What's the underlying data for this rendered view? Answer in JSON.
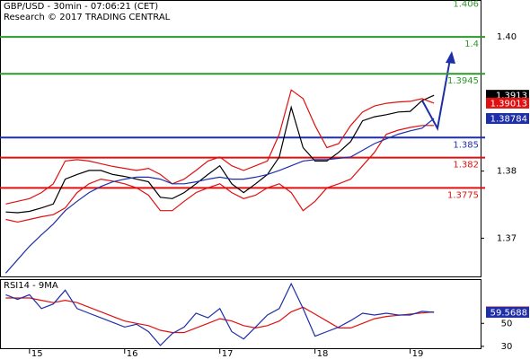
{
  "chart_data": [
    {
      "type": "line",
      "title": "GBP/USD - 30min - 07:06:21 (CET)",
      "subtitle": "Research © 2017 TRADING CENTRAL",
      "x": [
        14.75,
        14.875,
        15,
        15.125,
        15.25,
        15.375,
        15.5,
        15.625,
        15.75,
        15.875,
        16,
        16.125,
        16.25,
        16.375,
        16.5,
        16.625,
        16.75,
        16.875,
        17,
        17.125,
        17.25,
        17.375,
        17.5,
        17.625,
        17.75,
        17.875,
        18,
        18.125,
        18.25,
        18.375,
        18.5,
        18.625,
        18.75,
        18.875,
        19,
        19.125,
        19.25
      ],
      "xlim": [
        14.69,
        19.74
      ],
      "ylim": [
        1.3643,
        1.4055
      ],
      "yticks": [
        1.37,
        1.38,
        {
          "value": 1.4,
          "label": "1.40"
        }
      ],
      "levels": [
        {
          "value": 1.406,
          "color": "#2a9a2a"
        },
        {
          "value": 1.4,
          "color": "#2a9a2a"
        },
        {
          "value": 1.3945,
          "color": "#2a9a2a"
        },
        {
          "value": 1.385,
          "color": "#1f2fa8"
        },
        {
          "value": 1.382,
          "color": "#e01010"
        },
        {
          "value": 1.3775,
          "color": "#e01010"
        }
      ],
      "series": [
        {
          "color": "#000000",
          "values": [
            1.3739,
            1.3738,
            1.374,
            1.3745,
            1.3751,
            1.3788,
            1.3795,
            1.3801,
            1.3801,
            1.3795,
            1.3792,
            1.3788,
            1.3784,
            1.3761,
            1.3759,
            1.3768,
            1.3781,
            1.3795,
            1.3808,
            1.3781,
            1.3768,
            1.3781,
            1.3795,
            1.3821,
            1.3895,
            1.3835,
            1.3815,
            1.3815,
            1.3828,
            1.3844,
            1.3875,
            1.3881,
            1.3884,
            1.3888,
            1.3889,
            1.3905,
            1.3913
          ]
        },
        {
          "color": "#e01010",
          "values": [
            1.3751,
            1.3755,
            1.3759,
            1.3768,
            1.3781,
            1.3815,
            1.3817,
            1.3815,
            1.3811,
            1.3807,
            1.3804,
            1.3801,
            1.3804,
            1.3795,
            1.3781,
            1.3788,
            1.3801,
            1.3815,
            1.3821,
            1.3808,
            1.3801,
            1.3808,
            1.3815,
            1.3855,
            1.3921,
            1.3908,
            1.3868,
            1.3835,
            1.3841,
            1.3868,
            1.3888,
            1.3897,
            1.3901,
            1.3903,
            1.3904,
            1.3908,
            1.39013
          ]
        },
        {
          "color": "#e01010",
          "values": [
            1.3728,
            1.3724,
            1.3728,
            1.3732,
            1.3735,
            1.3745,
            1.3768,
            1.3781,
            1.3788,
            1.3785,
            1.3781,
            1.3775,
            1.3764,
            1.3741,
            1.3741,
            1.3755,
            1.3768,
            1.3775,
            1.3781,
            1.3768,
            1.3759,
            1.3764,
            1.3775,
            1.3781,
            1.3768,
            1.3741,
            1.3755,
            1.3775,
            1.3781,
            1.3788,
            1.3808,
            1.3828,
            1.3855,
            1.3861,
            1.3865,
            1.3868,
            1.3868
          ]
        },
        {
          "color": "#1f2fa8",
          "values": [
            1.3648,
            1.3668,
            1.3688,
            1.3705,
            1.3721,
            1.3741,
            1.3755,
            1.3768,
            1.3777,
            1.3784,
            1.3788,
            1.3791,
            1.3791,
            1.3788,
            1.3781,
            1.3781,
            1.3784,
            1.3788,
            1.3791,
            1.3788,
            1.3788,
            1.3791,
            1.3795,
            1.3801,
            1.3808,
            1.3815,
            1.3817,
            1.3817,
            1.3819,
            1.3821,
            1.3831,
            1.3841,
            1.3848,
            1.3855,
            1.386,
            1.3864,
            1.38784
          ]
        }
      ],
      "tags": [
        0,
        1,
        3
      ]
    },
    {
      "type": "line",
      "title": "RSI14 - 9MA",
      "x": [
        14.75,
        14.875,
        15,
        15.125,
        15.25,
        15.375,
        15.5,
        15.625,
        15.75,
        15.875,
        16,
        16.125,
        16.25,
        16.375,
        16.5,
        16.625,
        16.75,
        16.875,
        17,
        17.125,
        17.25,
        17.375,
        17.5,
        17.625,
        17.75,
        17.875,
        18,
        18.125,
        18.25,
        18.375,
        18.5,
        18.625,
        18.75,
        18.875,
        19,
        19.125,
        19.25
      ],
      "xlim": [
        14.69,
        19.74
      ],
      "xticks": [
        15,
        16,
        17,
        18,
        19
      ],
      "ylim": [
        27.6,
        88.4
      ],
      "yticks": [
        30,
        50
      ],
      "series": [
        {
          "color": "#e01010",
          "values": [
            72,
            72,
            72,
            70,
            68,
            70,
            68,
            64,
            60,
            56,
            52,
            50,
            48,
            44,
            42,
            42,
            46,
            50,
            54,
            52,
            48,
            46,
            48,
            52,
            60,
            64,
            58,
            52,
            46,
            46,
            50,
            54,
            56,
            57,
            58,
            59,
            59.9586
          ]
        },
        {
          "color": "#1f2fa8",
          "values": [
            74.8,
            70.8,
            74.8,
            62.8,
            66.8,
            78.8,
            62.8,
            58.8,
            54.8,
            50.8,
            46.8,
            49.2,
            42.8,
            30.8,
            41.2,
            46.8,
            58.8,
            54.8,
            62.8,
            42.8,
            36.4,
            46.8,
            57.2,
            62.8,
            84.4,
            62.8,
            38.8,
            42.8,
            46.8,
            52.4,
            58.8,
            57.2,
            58.8,
            57.2,
            57.2,
            60.4,
            59.5688
          ]
        }
      ],
      "tags": [
        0,
        1
      ]
    }
  ]
}
